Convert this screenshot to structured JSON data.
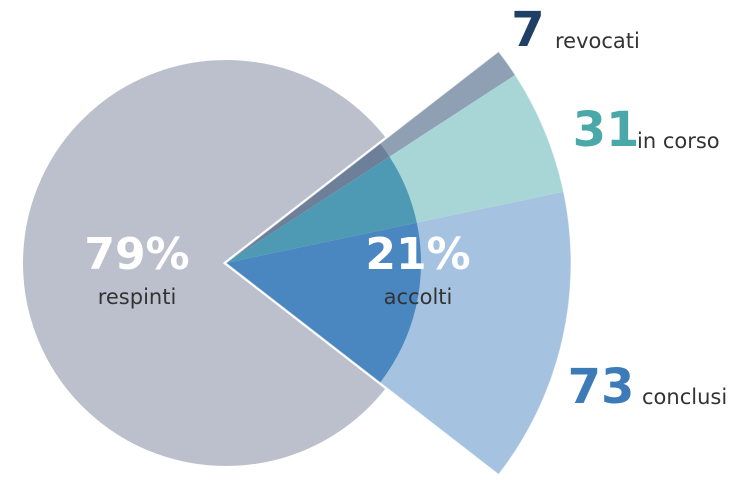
{
  "chart_data": {
    "type": "pie",
    "categories": [
      "respinti",
      "accolti"
    ],
    "values": [
      79,
      21
    ],
    "value_labels": [
      "79%",
      "21%"
    ],
    "colors": [
      "#bcc0cc",
      "#4a86c0"
    ],
    "breakdown": {
      "categories": [
        "revocati",
        "in corso",
        "conclusi"
      ],
      "values": [
        7,
        31,
        73
      ],
      "colors": [
        "#8fa0b5",
        "#a8d6d6",
        "#a5c3e0"
      ],
      "inner_colors": [
        "#6d7f99",
        "#4e9ab5",
        "#4a86c0"
      ],
      "label_colors": [
        "#1f3f66",
        "#4aa8a8",
        "#3d7ab8"
      ]
    }
  }
}
